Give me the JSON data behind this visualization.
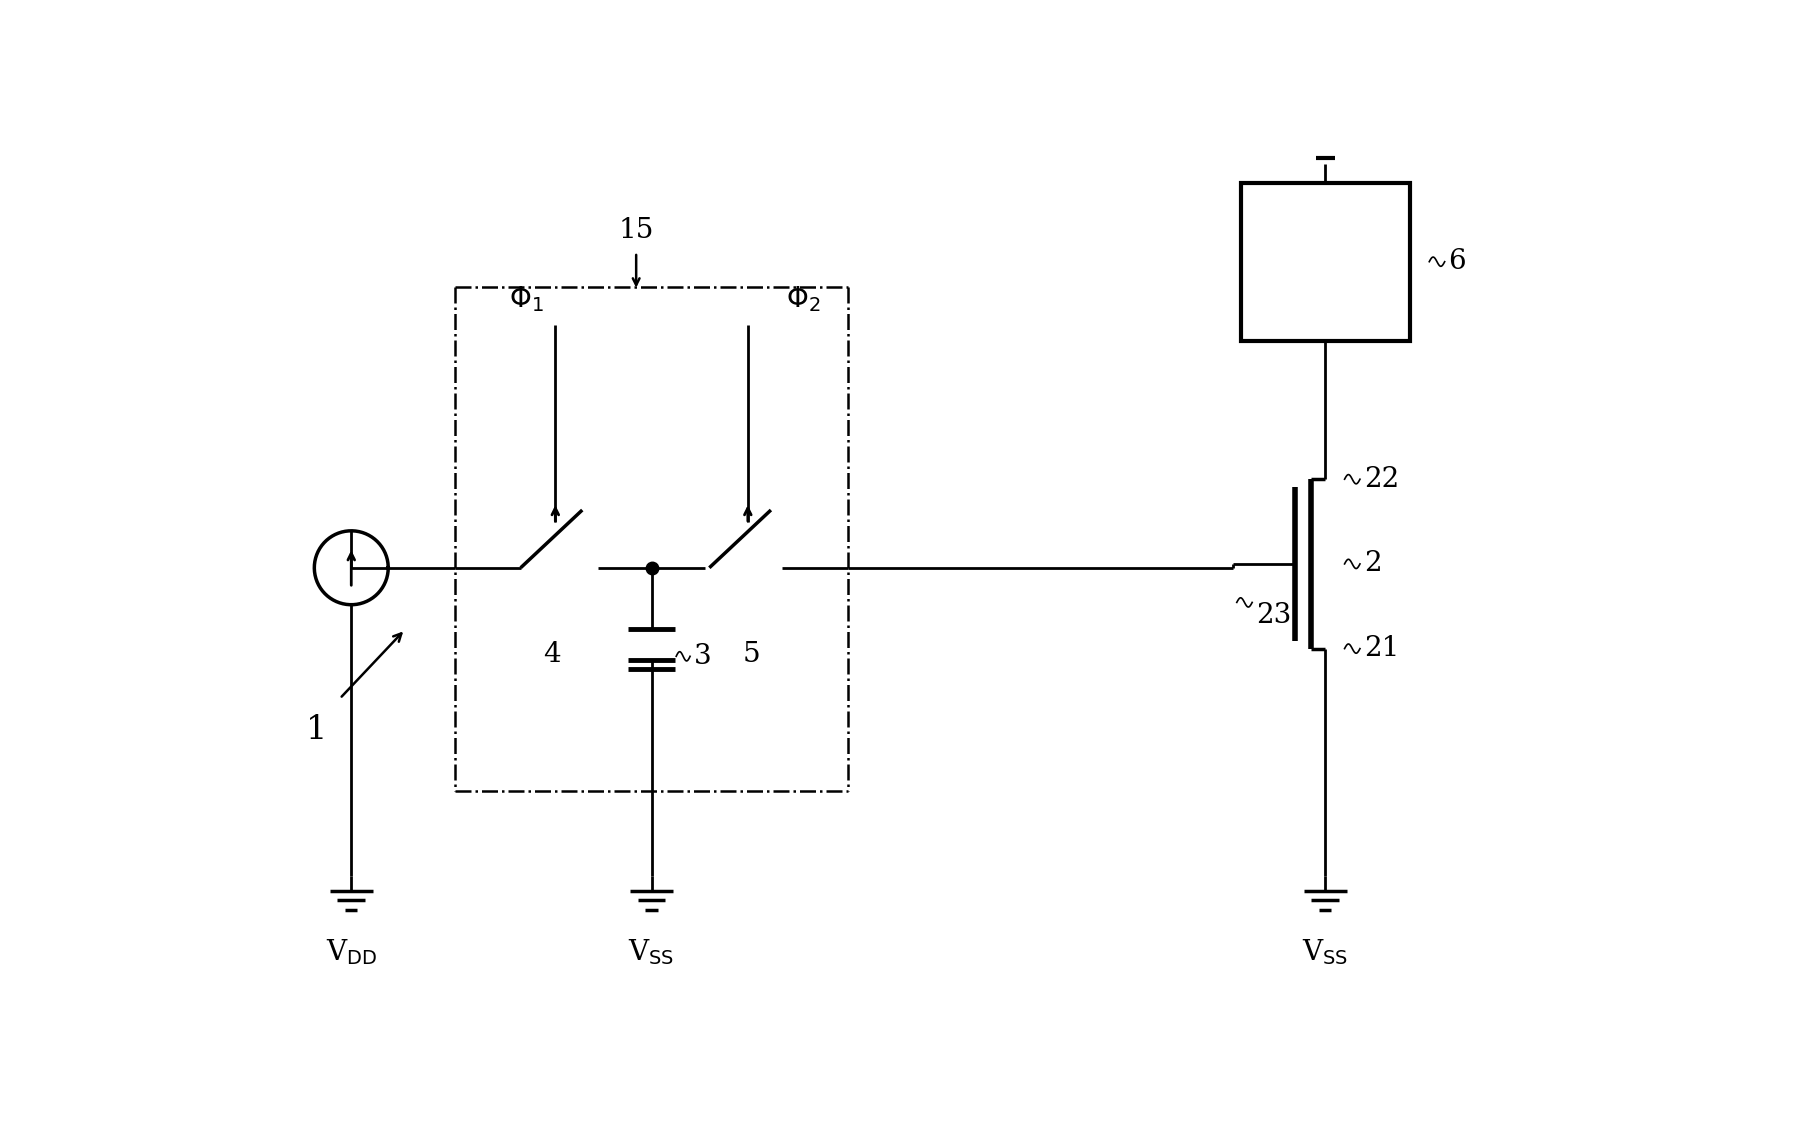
{
  "bg_color": "#ffffff",
  "line_color": "#000000",
  "lw": 2.0,
  "dlw": 1.8,
  "fig_width": 18.19,
  "fig_height": 11.38
}
